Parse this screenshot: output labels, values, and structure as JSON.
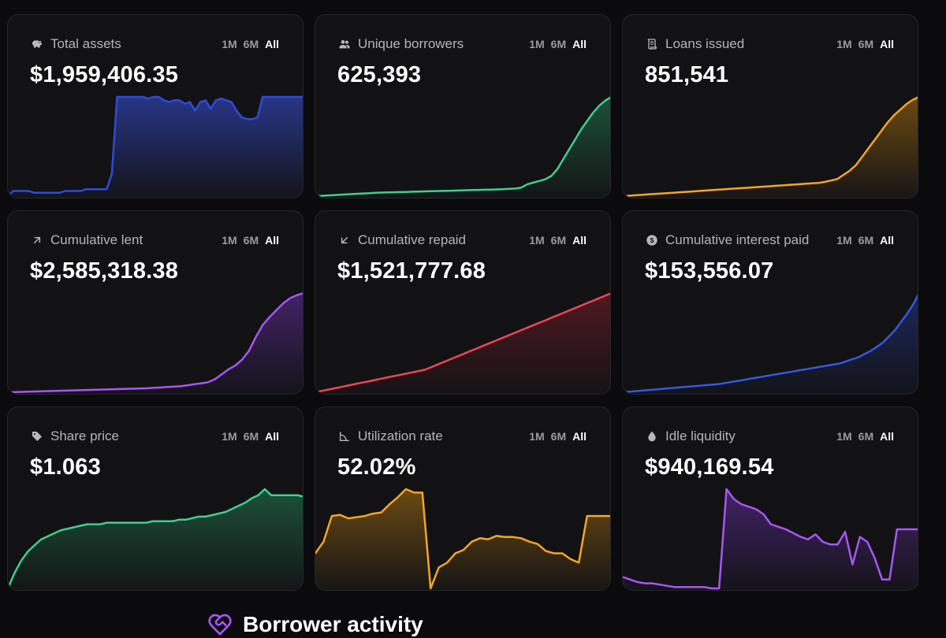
{
  "cards": [
    {
      "title": "Total assets",
      "value": "$1,959,406.35",
      "icon": "piggy-bank-icon",
      "color": "#2f4ad8",
      "fill": "#2b3c9a",
      "spark": [
        0,
        3,
        3,
        3,
        3,
        2,
        2,
        2,
        2,
        2,
        2,
        3,
        3,
        3,
        3,
        4,
        4,
        4,
        4,
        4,
        13,
        58,
        58,
        58,
        58,
        58,
        58,
        57,
        58,
        58,
        56,
        55,
        56,
        56,
        54,
        55,
        50,
        55,
        56,
        51,
        56,
        57,
        56,
        55,
        50,
        46,
        45,
        45,
        46,
        58,
        58,
        58,
        58,
        58,
        58,
        58,
        58,
        58
      ]
    },
    {
      "title": "Unique borrowers",
      "value": "625,393",
      "icon": "users-icon",
      "color": "#3ecf8e",
      "fill": "#1f5c3e",
      "spark": [
        0,
        0.2,
        0.4,
        0.6,
        0.8,
        1,
        1.2,
        1.4,
        1.6,
        1.8,
        2,
        2.1,
        2.2,
        2.3,
        2.4,
        2.5,
        2.6,
        2.7,
        2.8,
        2.9,
        3,
        3.1,
        3.2,
        3.3,
        3.4,
        3.5,
        3.6,
        3.7,
        3.8,
        3.9,
        4,
        4.1,
        4.3,
        4.5,
        5,
        7,
        8,
        9,
        10,
        12,
        16,
        22,
        28,
        34,
        40,
        45,
        50,
        54,
        57,
        59
      ]
    },
    {
      "title": "Loans issued",
      "value": "851,541",
      "icon": "scroll-icon",
      "color": "#f5a524",
      "fill": "#7a5412",
      "spark": [
        0,
        0.3,
        0.6,
        0.9,
        1.2,
        1.5,
        1.8,
        2.1,
        2.4,
        2.7,
        3,
        3.3,
        3.6,
        3.9,
        4.2,
        4.5,
        4.8,
        5.1,
        5.4,
        5.7,
        6,
        6.3,
        6.6,
        6.9,
        7.2,
        7.5,
        7.8,
        8.1,
        8.4,
        8.7,
        9,
        9.3,
        10,
        11,
        12,
        15,
        18,
        22,
        28,
        34,
        40,
        46,
        52,
        57,
        61,
        65,
        68,
        70
      ]
    },
    {
      "title": "Cumulative lent",
      "value": "$2,585,318.38",
      "icon": "arrow-up-right-icon",
      "color": "#a855f7",
      "fill": "#4a2675",
      "spark": [
        0,
        0.2,
        0.4,
        0.6,
        0.8,
        1,
        1.2,
        1.4,
        1.6,
        1.8,
        2,
        2.2,
        2.4,
        2.6,
        2.8,
        3,
        3.2,
        3.4,
        3.6,
        3.8,
        4,
        4.4,
        4.8,
        5.2,
        5.6,
        6,
        7,
        8,
        9,
        10,
        13,
        18,
        23,
        27,
        33,
        42,
        56,
        68,
        76,
        83,
        90,
        95,
        98,
        100
      ]
    },
    {
      "title": "Cumulative repaid",
      "value": "$1,521,777.68",
      "icon": "arrow-down-left-icon",
      "color": "#ef4556",
      "fill": "#5a1a22",
      "spark": [
        0,
        1,
        2,
        3,
        4,
        5,
        6,
        7,
        8,
        9,
        10,
        11,
        12,
        13,
        14,
        15,
        16,
        17,
        19,
        21,
        23,
        25,
        27,
        29,
        31,
        33,
        35,
        37,
        39,
        41,
        43,
        45,
        47,
        49,
        51,
        53,
        55,
        57,
        59,
        61,
        63,
        65,
        67,
        69,
        71,
        73,
        75
      ]
    },
    {
      "title": "Cumulative interest paid",
      "value": "$153,556.07",
      "icon": "dollar-circle-icon",
      "color": "#3358e0",
      "fill": "#1e2b6a",
      "spark": [
        0,
        0.5,
        1,
        1.5,
        2,
        2.5,
        3,
        3.5,
        4,
        4.5,
        5,
        5.5,
        6,
        6.5,
        7,
        7.5,
        8,
        9,
        10,
        11,
        12,
        13,
        14,
        15,
        16,
        17,
        18,
        19,
        20,
        21,
        22,
        23,
        24,
        25,
        26,
        27,
        28,
        30,
        32,
        34,
        37,
        40,
        44,
        48,
        54,
        60,
        68,
        76,
        85,
        96
      ]
    },
    {
      "title": "Share price",
      "value": "$1.063",
      "icon": "tag-icon",
      "color": "#3ecf8e",
      "fill": "#1f5c3e",
      "spark": [
        1.0,
        1.01,
        1.018,
        1.024,
        1.028,
        1.032,
        1.034,
        1.036,
        1.038,
        1.039,
        1.04,
        1.041,
        1.042,
        1.042,
        1.042,
        1.043,
        1.043,
        1.043,
        1.043,
        1.043,
        1.043,
        1.043,
        1.044,
        1.044,
        1.044,
        1.044,
        1.045,
        1.045,
        1.046,
        1.047,
        1.047,
        1.048,
        1.049,
        1.05,
        1.052,
        1.054,
        1.056,
        1.059,
        1.061,
        1.065,
        1.061,
        1.061,
        1.061,
        1.061,
        1.061,
        1.06
      ]
    },
    {
      "title": "Utilization rate",
      "value": "52.02%",
      "icon": "angle-icon",
      "color": "#f5a524",
      "fill": "#7a5412",
      "spark": [
        0.3,
        0.4,
        0.62,
        0.63,
        0.6,
        0.61,
        0.62,
        0.64,
        0.65,
        0.72,
        0.78,
        0.85,
        0.82,
        0.82,
        0.0,
        0.18,
        0.22,
        0.3,
        0.33,
        0.4,
        0.43,
        0.42,
        0.45,
        0.44,
        0.44,
        0.43,
        0.4,
        0.38,
        0.32,
        0.3,
        0.3,
        0.25,
        0.22,
        0.62,
        0.62,
        0.62,
        0.62
      ]
    },
    {
      "title": "Idle liquidity",
      "value": "$940,169.54",
      "icon": "drop-icon",
      "color": "#a855f7",
      "fill": "#4a2675",
      "spark": [
        0.1,
        0.08,
        0.06,
        0.05,
        0.05,
        0.04,
        0.03,
        0.02,
        0.02,
        0.02,
        0.02,
        0.02,
        0.01,
        0.01,
        0.8,
        0.72,
        0.68,
        0.66,
        0.64,
        0.6,
        0.52,
        0.5,
        0.48,
        0.45,
        0.42,
        0.4,
        0.44,
        0.38,
        0.36,
        0.36,
        0.46,
        0.2,
        0.42,
        0.38,
        0.25,
        0.08,
        0.08,
        0.48,
        0.48,
        0.48,
        0.48
      ]
    }
  ],
  "ranges": [
    "1M",
    "6M",
    "All"
  ],
  "section": {
    "title": "Borrower activity",
    "icon": "heart-handshake-icon"
  }
}
